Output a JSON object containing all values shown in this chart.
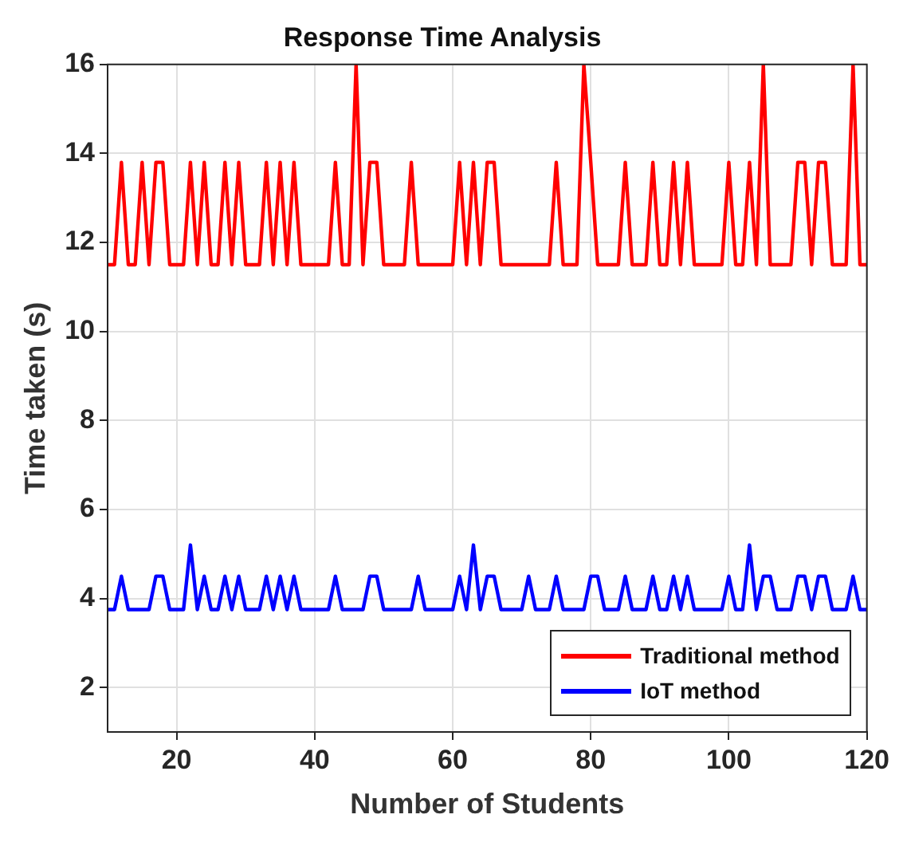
{
  "chart_data": {
    "type": "line",
    "title": "Response Time Analysis",
    "xlabel": "Number of Students",
    "ylabel": "Time taken (s)",
    "x": [
      10,
      11,
      12,
      13,
      14,
      15,
      16,
      17,
      18,
      19,
      20,
      21,
      22,
      23,
      24,
      25,
      26,
      27,
      28,
      29,
      30,
      31,
      32,
      33,
      34,
      35,
      36,
      37,
      38,
      39,
      40,
      41,
      42,
      43,
      44,
      45,
      46,
      47,
      48,
      49,
      50,
      51,
      52,
      53,
      54,
      55,
      56,
      57,
      58,
      59,
      60,
      61,
      62,
      63,
      64,
      65,
      66,
      67,
      68,
      69,
      70,
      71,
      72,
      73,
      74,
      75,
      76,
      77,
      78,
      79,
      80,
      81,
      82,
      83,
      84,
      85,
      86,
      87,
      88,
      89,
      90,
      91,
      92,
      93,
      94,
      95,
      96,
      97,
      98,
      99,
      100,
      101,
      102,
      103,
      104,
      105,
      106,
      107,
      108,
      109,
      110,
      111,
      112,
      113,
      114,
      115,
      116,
      117,
      118,
      119,
      120
    ],
    "series": [
      {
        "name": "Traditional method",
        "color": "#ff0000",
        "values": [
          11.5,
          11.5,
          13.8,
          11.5,
          11.5,
          13.8,
          11.5,
          13.8,
          13.8,
          11.5,
          11.5,
          11.5,
          13.8,
          11.5,
          13.8,
          11.5,
          11.5,
          13.8,
          11.5,
          13.8,
          11.5,
          11.5,
          11.5,
          13.8,
          11.5,
          13.8,
          11.5,
          13.8,
          11.5,
          11.5,
          11.5,
          11.5,
          11.5,
          13.8,
          11.5,
          11.5,
          16,
          11.5,
          13.8,
          13.8,
          11.5,
          11.5,
          11.5,
          11.5,
          13.8,
          11.5,
          11.5,
          11.5,
          11.5,
          11.5,
          11.5,
          13.8,
          11.5,
          13.8,
          11.5,
          13.8,
          13.8,
          11.5,
          11.5,
          11.5,
          11.5,
          11.5,
          11.5,
          11.5,
          11.5,
          13.8,
          11.5,
          11.5,
          11.5,
          16,
          13.8,
          11.5,
          11.5,
          11.5,
          11.5,
          13.8,
          11.5,
          11.5,
          11.5,
          13.8,
          11.5,
          11.5,
          13.8,
          11.5,
          13.8,
          11.5,
          11.5,
          11.5,
          11.5,
          11.5,
          13.8,
          11.5,
          11.5,
          13.8,
          11.5,
          16,
          11.5,
          11.5,
          11.5,
          11.5,
          13.8,
          13.8,
          11.5,
          13.8,
          13.8,
          11.5,
          11.5,
          11.5,
          16,
          11.5,
          11.5
        ]
      },
      {
        "name": "IoT method",
        "color": "#0000ff",
        "values": [
          3.75,
          3.75,
          4.5,
          3.75,
          3.75,
          3.75,
          3.75,
          4.5,
          4.5,
          3.75,
          3.75,
          3.75,
          5.2,
          3.75,
          4.5,
          3.75,
          3.75,
          4.5,
          3.75,
          4.5,
          3.75,
          3.75,
          3.75,
          4.5,
          3.75,
          4.5,
          3.75,
          4.5,
          3.75,
          3.75,
          3.75,
          3.75,
          3.75,
          4.5,
          3.75,
          3.75,
          3.75,
          3.75,
          4.5,
          4.5,
          3.75,
          3.75,
          3.75,
          3.75,
          3.75,
          4.5,
          3.75,
          3.75,
          3.75,
          3.75,
          3.75,
          4.5,
          3.75,
          5.2,
          3.75,
          4.5,
          4.5,
          3.75,
          3.75,
          3.75,
          3.75,
          4.5,
          3.75,
          3.75,
          3.75,
          4.5,
          3.75,
          3.75,
          3.75,
          3.75,
          4.5,
          4.5,
          3.75,
          3.75,
          3.75,
          4.5,
          3.75,
          3.75,
          3.75,
          4.5,
          3.75,
          3.75,
          4.5,
          3.75,
          4.5,
          3.75,
          3.75,
          3.75,
          3.75,
          3.75,
          4.5,
          3.75,
          3.75,
          5.2,
          3.75,
          4.5,
          4.5,
          3.75,
          3.75,
          3.75,
          4.5,
          4.5,
          3.75,
          4.5,
          4.5,
          3.75,
          3.75,
          3.75,
          4.5,
          3.75,
          3.75
        ]
      }
    ],
    "xlim": [
      10,
      120
    ],
    "xticks": [
      20,
      40,
      60,
      80,
      100,
      120
    ],
    "ylim": [
      1,
      16
    ],
    "yticks": [
      2,
      4,
      6,
      8,
      10,
      12,
      14,
      16
    ],
    "grid": true,
    "legend": "bottom right",
    "marker": "none",
    "line_style": "solid"
  }
}
